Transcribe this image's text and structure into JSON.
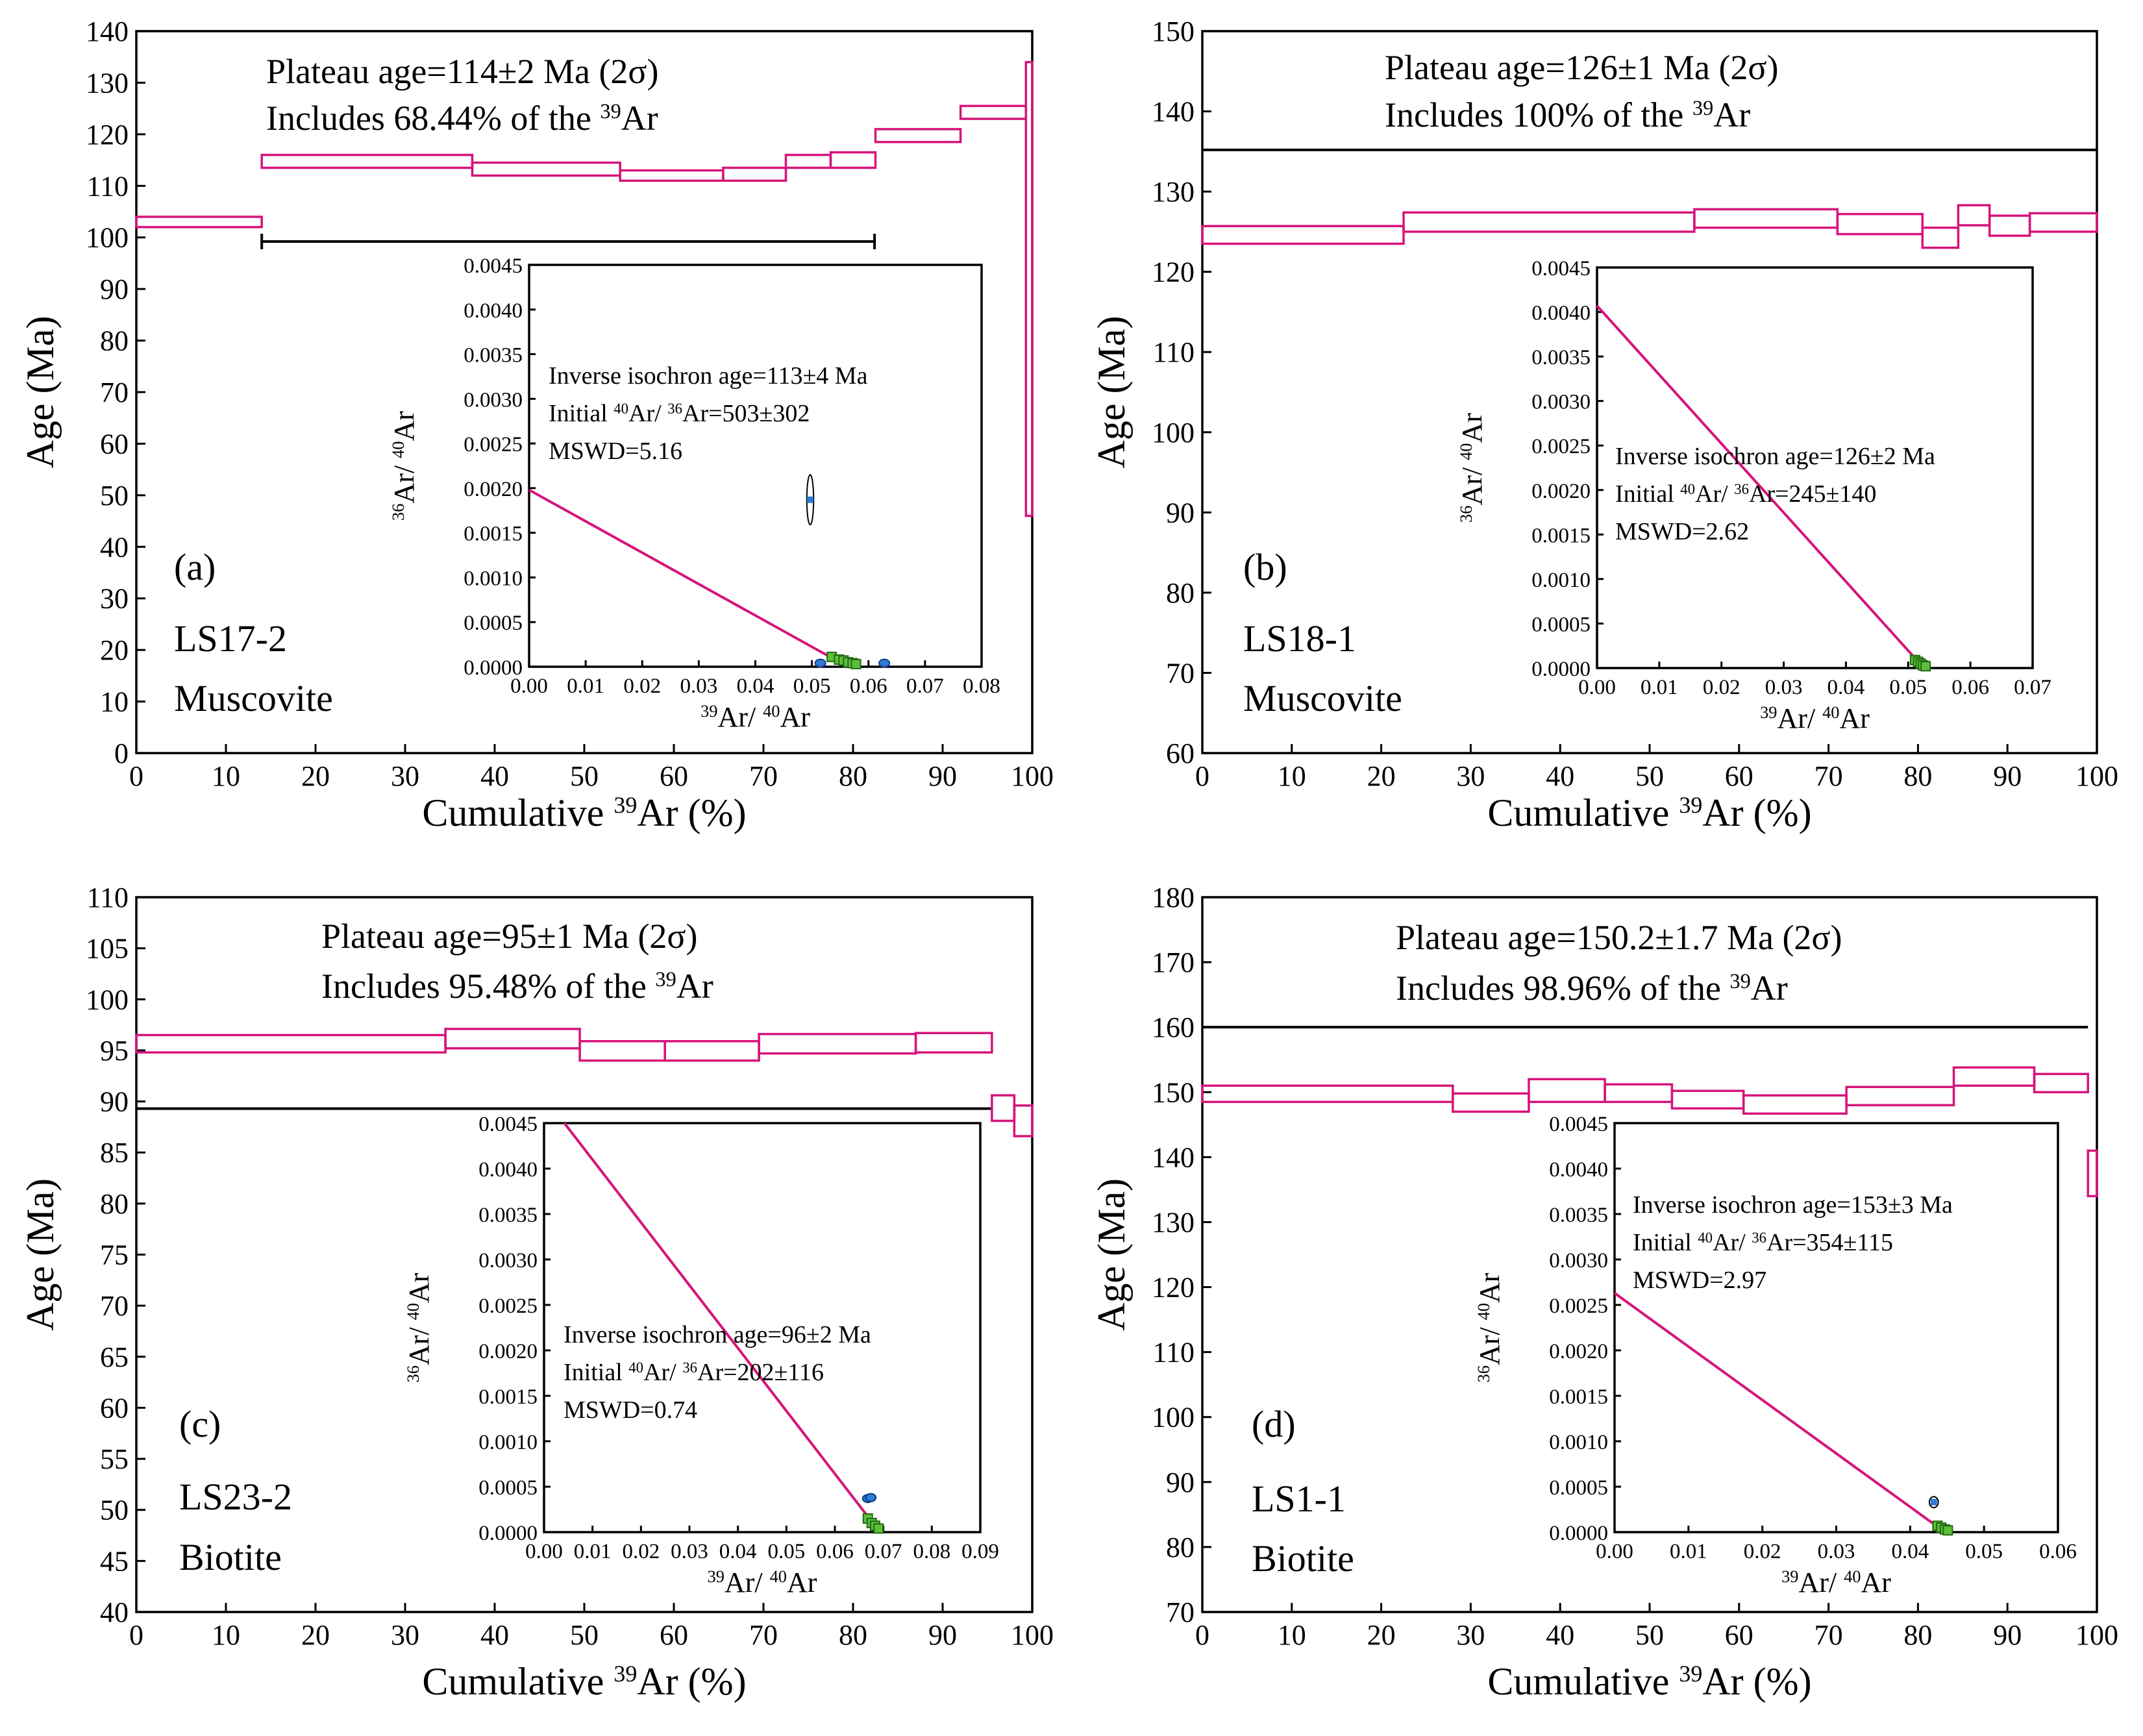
{
  "chart_data": [
    {
      "type": "step",
      "panel_label": "(a)",
      "sample": "LS17-2",
      "mineral": "Muscovite",
      "plateau_text": "Plateau age=114±2 Ma (2σ)",
      "includes_text": "Includes 68.44% of the",
      "includes_suffix": "Ar",
      "xlabel_prefix": "Cumulative ",
      "xlabel_suffix": "Ar (%)",
      "ylabel": "Age (Ma)",
      "xlim": [
        0,
        100
      ],
      "xticks": [
        0,
        10,
        20,
        30,
        40,
        50,
        60,
        70,
        80,
        90,
        100
      ],
      "ylim": [
        0,
        140
      ],
      "yticks": [
        0,
        10,
        20,
        30,
        40,
        50,
        60,
        70,
        80,
        90,
        100,
        110,
        120,
        130,
        140
      ],
      "plateau_range": [
        14,
        82.4
      ],
      "steps": [
        {
          "x0": 0,
          "x1": 14,
          "lo": 102,
          "hi": 104
        },
        {
          "x0": 14,
          "x1": 37.5,
          "lo": 113.5,
          "hi": 116
        },
        {
          "x0": 37.5,
          "x1": 54,
          "lo": 112,
          "hi": 114.5
        },
        {
          "x0": 54,
          "x1": 65.5,
          "lo": 111,
          "hi": 113
        },
        {
          "x0": 65.5,
          "x1": 72.5,
          "lo": 111,
          "hi": 113.5
        },
        {
          "x0": 72.5,
          "x1": 77.5,
          "lo": 113.5,
          "hi": 116
        },
        {
          "x0": 77.5,
          "x1": 82.5,
          "lo": 113.5,
          "hi": 116.5
        },
        {
          "x0": 82.5,
          "x1": 92,
          "lo": 118.5,
          "hi": 121
        },
        {
          "x0": 92,
          "x1": 99.3,
          "lo": 123,
          "hi": 125.5
        },
        {
          "x0": 99.3,
          "x1": 100,
          "lo": 46,
          "hi": 134
        }
      ],
      "inset": {
        "xlabel_a": "Ar/",
        "xlabel_b": "Ar",
        "ylabel_a": "Ar/",
        "ylabel_b": "Ar",
        "xlim": [
          0,
          0.08
        ],
        "xticks": [
          "0.00",
          "0.01",
          "0.02",
          "0.03",
          "0.04",
          "0.05",
          "0.06",
          "0.07",
          "0.08"
        ],
        "ylim": [
          0,
          0.0045
        ],
        "yticks": [
          "0.0000",
          "0.0005",
          "0.0010",
          "0.0015",
          "0.0020",
          "0.0025",
          "0.0030",
          "0.0035",
          "0.0040",
          "0.0045"
        ],
        "isochron_text": "Inverse isochron age=113±4 Ma",
        "initial_text_a": "Initial ",
        "initial_text_b": "Ar/ ",
        "initial_text_c": "Ar=503±302",
        "mswd_text": "MSWD=5.16",
        "regression": [
          [
            0.0,
            0.00198
          ],
          [
            0.0535,
            0.0001
          ]
        ],
        "green_points": [
          [
            0.0535,
            0.00011
          ],
          [
            0.0548,
            8e-05
          ],
          [
            0.0556,
            7e-05
          ],
          [
            0.0564,
            5e-05
          ],
          [
            0.0572,
            4e-05
          ],
          [
            0.0578,
            3e-05
          ]
        ],
        "blue_points": [
          [
            0.0515,
            4e-05
          ],
          [
            0.0628,
            4e-05
          ]
        ],
        "outlier_point": {
          "x": 0.0497,
          "y": 0.00187,
          "rx": 0.0006,
          "ry": 0.00028
        }
      }
    },
    {
      "type": "step",
      "panel_label": "(b)",
      "sample": "LS18-1",
      "mineral": "Muscovite",
      "plateau_text": "Plateau age=126±1 Ma (2σ)",
      "includes_text": "Includes 100% of the",
      "includes_suffix": "Ar",
      "xlabel_prefix": "Cumulative ",
      "xlabel_suffix": "Ar (%)",
      "ylabel": "Age (Ma)",
      "xlim": [
        0,
        100
      ],
      "xticks": [
        0,
        10,
        20,
        30,
        40,
        50,
        60,
        70,
        80,
        90,
        100
      ],
      "ylim": [
        60,
        150
      ],
      "yticks": [
        60,
        70,
        80,
        90,
        100,
        110,
        120,
        130,
        140,
        150
      ],
      "plateau_range": [
        0,
        100
      ],
      "plateau_bar_y": 135.2,
      "steps": [
        {
          "x0": 0,
          "x1": 22.5,
          "lo": 123.5,
          "hi": 125.7
        },
        {
          "x0": 22.5,
          "x1": 55,
          "lo": 125,
          "hi": 127.4
        },
        {
          "x0": 55,
          "x1": 71,
          "lo": 125.5,
          "hi": 127.8
        },
        {
          "x0": 71,
          "x1": 80.5,
          "lo": 124.7,
          "hi": 127.2
        },
        {
          "x0": 80.5,
          "x1": 84.5,
          "lo": 123,
          "hi": 125.5
        },
        {
          "x0": 84.5,
          "x1": 88,
          "lo": 125.8,
          "hi": 128.3
        },
        {
          "x0": 88,
          "x1": 92.5,
          "lo": 124.5,
          "hi": 127
        },
        {
          "x0": 92.5,
          "x1": 100,
          "lo": 125,
          "hi": 127.3
        }
      ],
      "inset": {
        "xlabel_a": "Ar/",
        "xlabel_b": "Ar",
        "ylabel_a": "Ar/",
        "ylabel_b": "Ar",
        "xlim": [
          0,
          0.07
        ],
        "xticks": [
          "0.00",
          "0.01",
          "0.02",
          "0.03",
          "0.04",
          "0.05",
          "0.06",
          "0.07"
        ],
        "ylim": [
          0,
          0.0045
        ],
        "yticks": [
          "0.0000",
          "0.0005",
          "0.0010",
          "0.0015",
          "0.0020",
          "0.0025",
          "0.0030",
          "0.0035",
          "0.0040",
          "0.0045"
        ],
        "isochron_text": "Inverse isochron age=126±2 Ma",
        "initial_text_a": "Initial ",
        "initial_text_b": "Ar/ ",
        "initial_text_c": "Ar=245±140",
        "mswd_text": "MSWD=2.62",
        "regression": [
          [
            0.0,
            0.00407
          ],
          [
            0.0515,
            8e-05
          ]
        ],
        "green_points": [
          [
            0.0511,
            9e-05
          ],
          [
            0.0516,
            7e-05
          ],
          [
            0.052,
            5e-05
          ],
          [
            0.0524,
            3e-05
          ],
          [
            0.0528,
            2e-05
          ]
        ],
        "blue_points": [],
        "outlier_point": null
      }
    },
    {
      "type": "step",
      "panel_label": "(c)",
      "sample": "LS23-2",
      "mineral": "Biotite",
      "plateau_text": "Plateau age=95±1 Ma (2σ)",
      "includes_text": "Includes 95.48% of the",
      "includes_suffix": "Ar",
      "xlabel_prefix": "Cumulative ",
      "xlabel_suffix": "Ar (%)",
      "ylabel": "Age (Ma)",
      "xlim": [
        0,
        100
      ],
      "xticks": [
        0,
        10,
        20,
        30,
        40,
        50,
        60,
        70,
        80,
        90,
        100
      ],
      "ylim": [
        40,
        110
      ],
      "yticks": [
        40,
        45,
        50,
        55,
        60,
        65,
        70,
        75,
        80,
        85,
        90,
        95,
        100,
        105,
        110
      ],
      "plateau_range": [
        0,
        95.5
      ],
      "plateau_bar_y": 89.3,
      "steps": [
        {
          "x0": 0,
          "x1": 34.5,
          "lo": 94.8,
          "hi": 96.5
        },
        {
          "x0": 34.5,
          "x1": 49.5,
          "lo": 95.2,
          "hi": 97.1
        },
        {
          "x0": 49.5,
          "x1": 59,
          "lo": 94,
          "hi": 95.9
        },
        {
          "x0": 59,
          "x1": 69.5,
          "lo": 94,
          "hi": 95.9
        },
        {
          "x0": 69.5,
          "x1": 87,
          "lo": 94.7,
          "hi": 96.6
        },
        {
          "x0": 87,
          "x1": 95.5,
          "lo": 94.8,
          "hi": 96.7
        },
        {
          "x0": 95.5,
          "x1": 98,
          "lo": 88.1,
          "hi": 90.6
        },
        {
          "x0": 98,
          "x1": 100,
          "lo": 86.6,
          "hi": 89.6
        }
      ],
      "inset": {
        "xlabel_a": "Ar/",
        "xlabel_b": "Ar",
        "ylabel_a": "Ar/",
        "ylabel_b": "Ar",
        "xlim": [
          0,
          0.09
        ],
        "xticks": [
          "0.00",
          "0.01",
          "0.02",
          "0.03",
          "0.04",
          "0.05",
          "0.06",
          "0.07",
          "0.08",
          "0.09"
        ],
        "ylim": [
          0,
          0.0045
        ],
        "yticks": [
          "0.0000",
          "0.0005",
          "0.0010",
          "0.0015",
          "0.0020",
          "0.0025",
          "0.0030",
          "0.0035",
          "0.0040",
          "0.0045"
        ],
        "isochron_text": "Inverse isochron age=96±2 Ma",
        "initial_text_a": "Initial ",
        "initial_text_b": "Ar/ ",
        "initial_text_c": "Ar=202±116",
        "mswd_text": "MSWD=0.74",
        "regression": [
          [
            0.0042,
            0.0045
          ],
          [
            0.069,
            2e-05
          ]
        ],
        "green_points": [
          [
            0.0668,
            0.00015
          ],
          [
            0.0676,
            0.0001
          ],
          [
            0.0683,
            7e-05
          ],
          [
            0.069,
            4e-05
          ]
        ],
        "blue_points": [
          [
            0.0668,
            0.00037
          ],
          [
            0.0674,
            0.00038
          ]
        ],
        "outlier_point": null
      }
    },
    {
      "type": "step",
      "panel_label": "(d)",
      "sample": "LS1-1",
      "mineral": "Biotite",
      "plateau_text": "Plateau age=150.2±1.7 Ma (2σ)",
      "includes_text": "Includes 98.96% of the",
      "includes_suffix": "Ar",
      "xlabel_prefix": "Cumulative ",
      "xlabel_suffix": "Ar (%)",
      "ylabel": "Age (Ma)",
      "xlim": [
        0,
        100
      ],
      "xticks": [
        0,
        10,
        20,
        30,
        40,
        50,
        60,
        70,
        80,
        90,
        100
      ],
      "ylim": [
        70,
        180
      ],
      "yticks": [
        70,
        80,
        90,
        100,
        110,
        120,
        130,
        140,
        150,
        160,
        170,
        180
      ],
      "plateau_range": [
        0,
        99
      ],
      "plateau_bar_y": 160,
      "steps": [
        {
          "x0": 0,
          "x1": 28,
          "lo": 148.5,
          "hi": 151
        },
        {
          "x0": 28,
          "x1": 36.5,
          "lo": 147,
          "hi": 149.8
        },
        {
          "x0": 36.5,
          "x1": 45,
          "lo": 148.5,
          "hi": 152
        },
        {
          "x0": 45,
          "x1": 52.5,
          "lo": 148.5,
          "hi": 151.2
        },
        {
          "x0": 52.5,
          "x1": 60.5,
          "lo": 147.5,
          "hi": 150.2
        },
        {
          "x0": 60.5,
          "x1": 72,
          "lo": 146.7,
          "hi": 149.5
        },
        {
          "x0": 72,
          "x1": 84,
          "lo": 148,
          "hi": 150.8
        },
        {
          "x0": 84,
          "x1": 93,
          "lo": 151,
          "hi": 153.8
        },
        {
          "x0": 93,
          "x1": 99,
          "lo": 150,
          "hi": 152.8
        },
        {
          "x0": 99,
          "x1": 100,
          "lo": 134,
          "hi": 141
        }
      ],
      "inset": {
        "xlabel_a": "Ar/",
        "xlabel_b": "Ar",
        "ylabel_a": "Ar/",
        "ylabel_b": "Ar",
        "xlim": [
          0,
          0.06
        ],
        "xticks": [
          "0.00",
          "0.01",
          "0.02",
          "0.03",
          "0.04",
          "0.05",
          "0.06"
        ],
        "ylim": [
          0,
          0.0045
        ],
        "yticks": [
          "0.0000",
          "0.0005",
          "0.0010",
          "0.0015",
          "0.0020",
          "0.0025",
          "0.0030",
          "0.0035",
          "0.0040",
          "0.0045"
        ],
        "isochron_text": "Inverse isochron age=153±3 Ma",
        "initial_text_a": "Initial ",
        "initial_text_b": "Ar/ ",
        "initial_text_c": "Ar=354±115",
        "mswd_text": "MSWD=2.97",
        "regression": [
          [
            0.0,
            0.00263
          ],
          [
            0.0437,
            6e-05
          ]
        ],
        "green_points": [
          [
            0.0437,
            7e-05
          ],
          [
            0.0442,
            5e-05
          ],
          [
            0.0447,
            3e-05
          ],
          [
            0.0451,
            2e-05
          ]
        ],
        "blue_points": [],
        "outlier_point": {
          "x": 0.0432,
          "y": 0.00033,
          "rx": 0.0006,
          "ry": 6e-05
        }
      }
    }
  ],
  "superscripts": {
    "m36": "36",
    "m39": "39",
    "m40": "40"
  }
}
